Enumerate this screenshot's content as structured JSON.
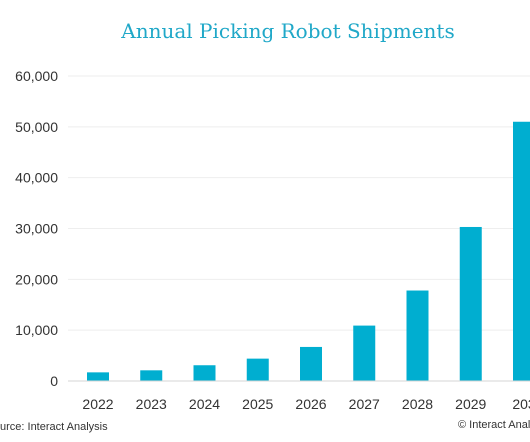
{
  "chart_data": {
    "type": "bar",
    "title": "Annual Picking Robot Shipments",
    "categories": [
      "2022",
      "2023",
      "2024",
      "2025",
      "2026",
      "2027",
      "2028",
      "2029",
      "203"
    ],
    "values": [
      1700,
      2100,
      3100,
      4400,
      6700,
      10900,
      17800,
      30300,
      51000
    ],
    "ylim": [
      0,
      60000
    ],
    "yticks": [
      "0",
      "10,000",
      "20,000",
      "30,000",
      "40,000",
      "50,000",
      "60,000"
    ],
    "xlabel": "",
    "ylabel": "",
    "grid": true,
    "bar_color": "#00aed0"
  },
  "footer": {
    "source": "urce: Interact Analysis",
    "copyright": "© Interact Analys"
  }
}
